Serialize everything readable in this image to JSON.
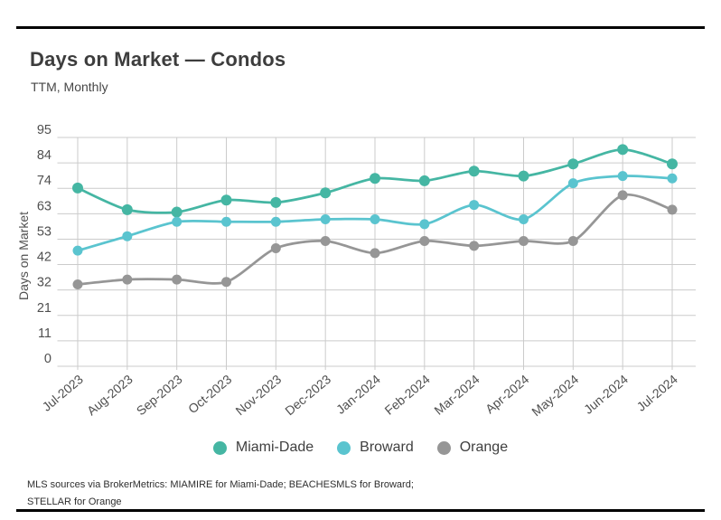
{
  "page": {
    "title": "Days on Market — Condos",
    "subtitle": "TTM, Monthly",
    "footer_line1": "MLS sources via BrokerMetrics: MIAMIRE for Miami-Dade; BEACHESMLS for Broward;",
    "footer_line2": "STELLAR for Orange",
    "rule_color": "#000000"
  },
  "chart_data": {
    "type": "line",
    "title": "Days on Market — Condos",
    "subtitle": "TTM, Monthly",
    "xlabel": "",
    "ylabel": "Days on Market",
    "ylim": [
      0,
      95
    ],
    "ytick_labels": [
      "0",
      "11",
      "21",
      "32",
      "42",
      "53",
      "63",
      "74",
      "84",
      "95"
    ],
    "grid": true,
    "legend_position": "bottom",
    "categories": [
      "Jul-2023",
      "Aug-2023",
      "Sep-2023",
      "Oct-2023",
      "Nov-2023",
      "Dec-2023",
      "Jan-2024",
      "Feb-2024",
      "Mar-2024",
      "Apr-2024",
      "May-2024",
      "Jun-2024",
      "Jul-2024"
    ],
    "series": [
      {
        "name": "Miami-Dade",
        "color": "#45b6a3",
        "values": [
          74,
          65,
          64,
          69,
          68,
          72,
          78,
          77,
          81,
          79,
          84,
          90,
          84
        ]
      },
      {
        "name": "Broward",
        "color": "#5ac4cf",
        "values": [
          48,
          54,
          60,
          60,
          60,
          61,
          61,
          59,
          67,
          61,
          76,
          79,
          78
        ]
      },
      {
        "name": "Orange",
        "color": "#969696",
        "values": [
          34,
          36,
          36,
          35,
          49,
          52,
          47,
          52,
          50,
          52,
          52,
          71,
          65
        ]
      }
    ],
    "grid_color": "#cbcbcb",
    "axis_text_color": "#4f4f4f"
  }
}
